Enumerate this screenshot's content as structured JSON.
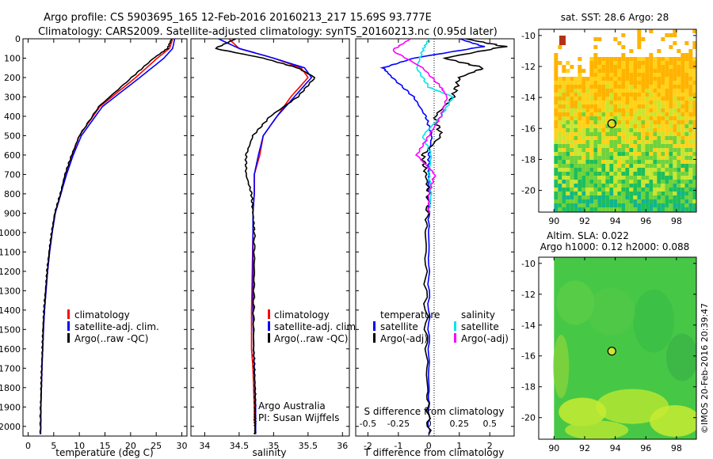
{
  "header": {
    "line1": "Argo profile: CS 5903695_165 12-Feb-2016 20160213_217 15.69S 93.777E",
    "line2": "Climatology: CARS2009. Satellite-adjusted climatology: synTS_20160213.nc (0.95d later)"
  },
  "panels": {
    "temperature": {
      "xlabel": "temperature (deg C)",
      "xticks": [
        "0",
        "5",
        "10",
        "15",
        "20",
        "25",
        "30"
      ],
      "legend": [
        "climatology",
        "satellite-adj. clim.",
        "Argo(..raw -QC)"
      ]
    },
    "salinity": {
      "xlabel": "salinity",
      "xticks": [
        "34",
        "34.5",
        "35",
        "35.5",
        "36"
      ],
      "legend": [
        "climatology",
        "satellite-adj. clim.",
        "Argo(..raw -QC)"
      ],
      "note1": "Argo Australia",
      "note2": "PI: Susan Wijffels"
    },
    "difference": {
      "xlabel": "T difference from climatology",
      "xticks": [
        "-2",
        "-1",
        "0",
        "1",
        "2"
      ],
      "top_label": "S difference from climatology",
      "top_ticks": [
        "-0.5",
        "-0.25",
        "0",
        "0.25",
        "0.5"
      ],
      "legend_left_title": "temperature",
      "legend_left": [
        "satellite",
        "Argo(-adj)"
      ],
      "legend_right_title": "salinity",
      "legend_right": [
        "satellite",
        "Argo(-adj)"
      ]
    },
    "depth_ticks": [
      "0",
      "100",
      "200",
      "300",
      "400",
      "500",
      "600",
      "700",
      "800",
      "900",
      "1000",
      "1100",
      "1200",
      "1300",
      "1400",
      "1500",
      "1600",
      "1700",
      "1800",
      "1900",
      "2000"
    ]
  },
  "maps": {
    "sst_title": "sat. SST: 28.6 Argo: 28",
    "sla_title1": "Altim. SLA: 0.022",
    "sla_title2": "Argo h1000: 0.12 h2000: 0.088",
    "lat_ticks": [
      "-10",
      "-12",
      "-14",
      "-16",
      "-18",
      "-20"
    ],
    "lon_ticks": [
      "90",
      "92",
      "94",
      "96",
      "98"
    ],
    "credit": "©IMOS 20-Feb-2016 20:39:47"
  },
  "colors": {
    "climatology": "#ff0000",
    "satellite": "#0000ff",
    "argo": "#000000",
    "sal_satellite": "#00e5ee",
    "sal_argo": "#ff00ff"
  },
  "chart_data": [
    {
      "type": "line",
      "xlabel": "temperature (deg C)",
      "xlim": [
        -1,
        31
      ],
      "ylim": [
        2050,
        0
      ],
      "y_reversed": true,
      "series": [
        {
          "name": "climatology",
          "color": "#ff0000",
          "x": [
            28.2,
            27.6,
            25.2,
            21.0,
            14.0,
            10.0,
            8.6,
            7.4,
            6.4,
            5.3,
            4.7,
            4.2,
            3.8,
            3.5,
            3.2,
            3.0,
            2.85,
            2.7,
            2.6,
            2.5,
            2.45
          ],
          "y": [
            0,
            50,
            100,
            200,
            350,
            500,
            600,
            700,
            800,
            900,
            1000,
            1100,
            1200,
            1300,
            1400,
            1500,
            1600,
            1700,
            1800,
            1900,
            2040
          ]
        },
        {
          "name": "satellite-adj. clim.",
          "color": "#0000ff",
          "x": [
            28.6,
            28.2,
            26.5,
            21.8,
            14.5,
            10.4,
            8.8,
            7.5,
            6.4,
            5.3,
            4.7,
            4.2,
            3.8,
            3.5,
            3.2,
            3.0,
            2.85,
            2.7,
            2.6,
            2.5,
            2.45
          ],
          "y": [
            0,
            50,
            100,
            200,
            350,
            500,
            600,
            700,
            800,
            900,
            1000,
            1100,
            1200,
            1300,
            1400,
            1500,
            1600,
            1700,
            1800,
            1900,
            2040
          ]
        },
        {
          "name": "Argo(..raw -QC)",
          "color": "#000000",
          "x": [
            28.0,
            27.2,
            24.5,
            20.2,
            13.8,
            10.0,
            8.5,
            7.2,
            6.3,
            5.2,
            4.6,
            4.1,
            3.7,
            3.4,
            3.1,
            2.9,
            2.8,
            2.65,
            2.55,
            2.45,
            2.4
          ],
          "y": [
            0,
            50,
            100,
            200,
            350,
            500,
            600,
            700,
            800,
            900,
            1000,
            1100,
            1200,
            1300,
            1400,
            1500,
            1600,
            1700,
            1800,
            1900,
            2040
          ]
        }
      ]
    },
    {
      "type": "line",
      "xlabel": "salinity",
      "xlim": [
        33.8,
        36.1
      ],
      "ylim": [
        2050,
        0
      ],
      "y_reversed": true,
      "series": [
        {
          "name": "climatology",
          "color": "#ff0000",
          "x": [
            34.35,
            34.5,
            35.0,
            35.4,
            35.5,
            35.25,
            35.05,
            34.85,
            34.8,
            34.72,
            34.72,
            34.7,
            34.7,
            34.69,
            34.68,
            34.68,
            34.7,
            34.71,
            34.72,
            34.72,
            34.73,
            34.73
          ],
          "y": [
            0,
            50,
            100,
            150,
            200,
            300,
            400,
            500,
            600,
            700,
            800,
            900,
            1000,
            1200,
            1400,
            1600,
            1700,
            1800,
            1900,
            1950,
            2000,
            2040
          ]
        },
        {
          "name": "satellite-adj. clim.",
          "color": "#0000ff",
          "x": [
            34.2,
            34.5,
            35.0,
            35.45,
            35.55,
            35.3,
            35.05,
            34.85,
            34.78,
            34.72,
            34.72,
            34.7,
            34.7,
            34.7,
            34.7,
            34.71,
            34.72,
            34.73,
            34.74,
            34.74,
            34.74,
            34.74
          ],
          "y": [
            0,
            50,
            100,
            150,
            200,
            300,
            400,
            500,
            600,
            700,
            800,
            900,
            1000,
            1200,
            1400,
            1600,
            1700,
            1800,
            1900,
            1950,
            2000,
            2040
          ]
        },
        {
          "name": "Argo(..raw -QC)",
          "color": "#000000",
          "x": [
            34.45,
            34.15,
            34.85,
            35.35,
            35.6,
            35.35,
            34.95,
            34.7,
            34.6,
            34.6,
            34.68,
            34.7,
            34.72,
            34.72,
            34.71,
            34.71,
            34.72,
            34.73,
            34.73,
            34.73,
            34.73,
            34.73
          ],
          "y": [
            0,
            50,
            100,
            150,
            200,
            300,
            400,
            500,
            600,
            700,
            800,
            900,
            1000,
            1200,
            1400,
            1600,
            1700,
            1800,
            1900,
            1950,
            2000,
            2040
          ]
        }
      ]
    },
    {
      "type": "line",
      "xlabel": "T difference from climatology",
      "top_axis": "S difference from climatology",
      "xlim": [
        -2.4,
        2.8
      ],
      "top_xlim": [
        -0.6,
        0.7
      ],
      "ylim": [
        2050,
        0
      ],
      "y_reversed": true,
      "series": [
        {
          "name": "temperature satellite",
          "axis": "T",
          "color": "#0000ff",
          "x": [
            1.0,
            1.8,
            -0.5,
            -1.5,
            -1.2,
            -0.5,
            -0.1,
            0.1,
            0.0,
            0.0,
            0.0,
            0.0,
            0.0,
            0.0,
            0.0
          ],
          "y": [
            0,
            40,
            100,
            150,
            200,
            300,
            400,
            500,
            600,
            700,
            800,
            1000,
            1400,
            1800,
            2040
          ]
        },
        {
          "name": "temperature Argo(-adj)",
          "axis": "T",
          "color": "#000000",
          "x": [
            1.2,
            2.5,
            0.5,
            1.8,
            1.0,
            0.8,
            0.2,
            0.4,
            -0.2,
            -0.1,
            0.0,
            -0.1,
            -0.1,
            -0.05,
            0.0
          ],
          "y": [
            0,
            40,
            100,
            150,
            200,
            300,
            400,
            500,
            600,
            700,
            800,
            1000,
            1400,
            1800,
            2040
          ]
        },
        {
          "name": "salinity satellite",
          "axis": "S",
          "color": "#00e5ee",
          "x": [
            0.0,
            -0.05,
            -0.1,
            0.0,
            0.2,
            0.1,
            -0.05,
            0.02,
            0.0,
            0.02,
            0.0
          ],
          "y": [
            0,
            60,
            150,
            250,
            300,
            400,
            500,
            600,
            700,
            800,
            900
          ]
        },
        {
          "name": "salinity Argo(-adj)",
          "axis": "S",
          "color": "#ff00ff",
          "x": [
            -0.15,
            -0.3,
            -0.05,
            0.1,
            0.15,
            0.1,
            0.0,
            -0.1,
            0.05,
            0.0,
            0.0
          ],
          "y": [
            0,
            60,
            150,
            250,
            300,
            400,
            500,
            600,
            700,
            800,
            900
          ]
        }
      ]
    }
  ],
  "map_data": {
    "sst_marker": {
      "lon": 93.777,
      "lat": -15.69
    },
    "sla_marker": {
      "lon": 93.777,
      "lat": -15.69
    },
    "lon_range": [
      89,
      99.3
    ],
    "lat_range": [
      -21.4,
      -9.6
    ]
  }
}
